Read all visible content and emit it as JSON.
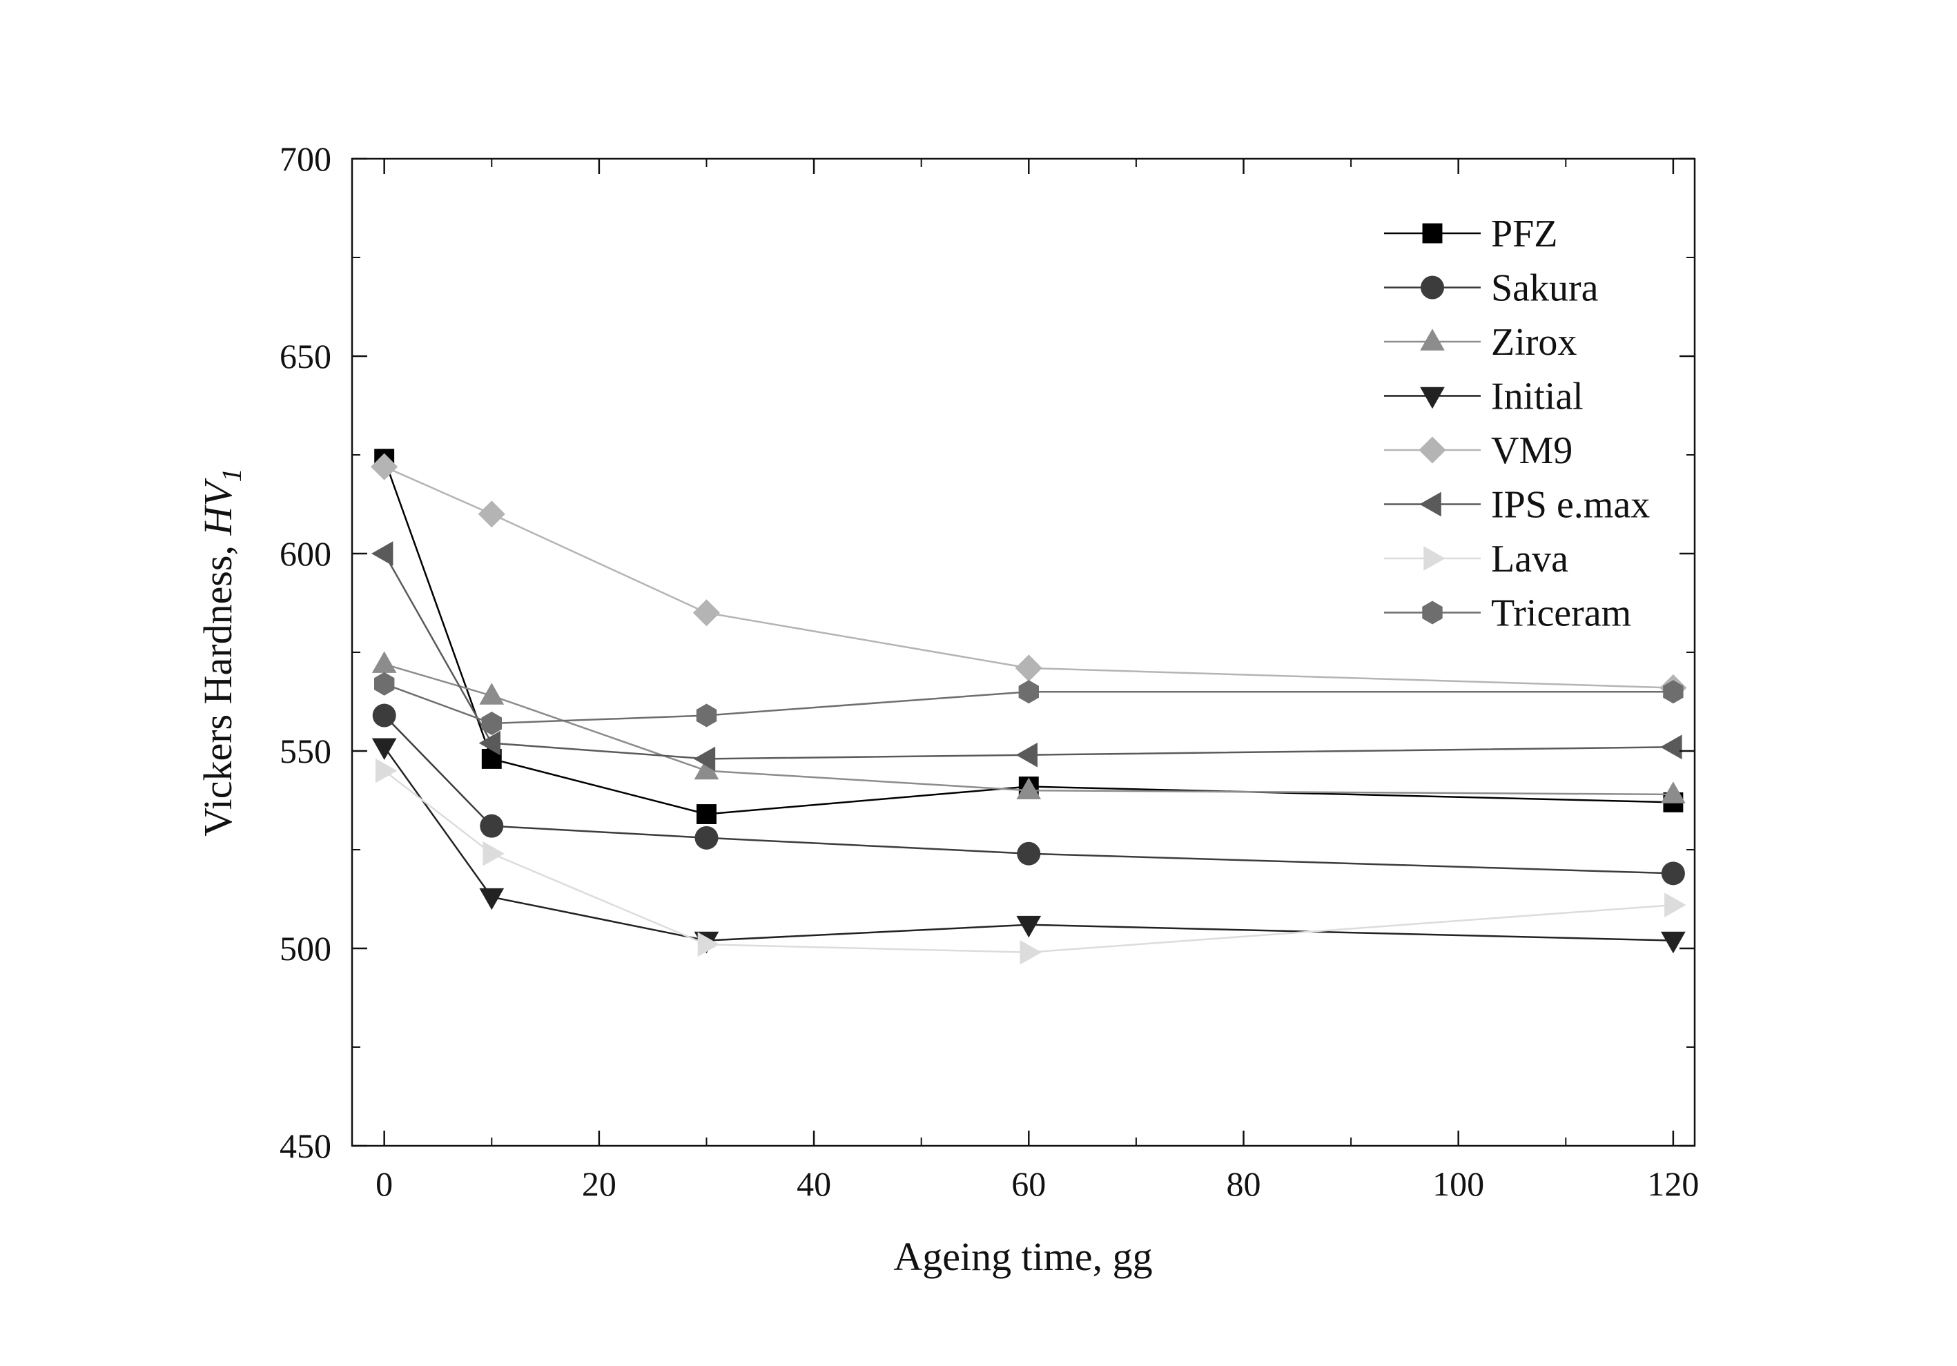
{
  "chart_data": {
    "type": "line",
    "xlabel": "Ageing time, gg",
    "ylabel": {
      "text": "Vickers Hardness, ",
      "symbol": "HV",
      "subscript": "1"
    },
    "xlim": [
      -3,
      122
    ],
    "ylim": [
      450,
      700
    ],
    "xticks": [
      0,
      20,
      40,
      60,
      80,
      100,
      120
    ],
    "yticks": [
      450,
      500,
      550,
      600,
      650,
      700
    ],
    "grid": false,
    "legend_position": "top-right",
    "x": [
      0,
      10,
      30,
      60,
      120
    ],
    "series": [
      {
        "name": "PFZ",
        "marker": "square",
        "color": "#000000",
        "values": [
          624,
          548,
          534,
          541,
          537
        ]
      },
      {
        "name": "Sakura",
        "marker": "circle",
        "color": "#3c3c3c",
        "values": [
          559,
          531,
          528,
          524,
          519
        ]
      },
      {
        "name": "Zirox",
        "marker": "triangle-up",
        "color": "#8c8c8c",
        "values": [
          572,
          564,
          545,
          540,
          539
        ]
      },
      {
        "name": "Initial",
        "marker": "triangle-down",
        "color": "#222222",
        "values": [
          551,
          513,
          502,
          506,
          502
        ]
      },
      {
        "name": "VM9",
        "marker": "diamond",
        "color": "#b4b4b4",
        "values": [
          622,
          610,
          585,
          571,
          566
        ]
      },
      {
        "name": "IPS e.max",
        "marker": "triangle-left",
        "color": "#5a5a5a",
        "values": [
          600,
          552,
          548,
          549,
          551
        ]
      },
      {
        "name": "Lava",
        "marker": "triangle-right",
        "color": "#dcdcdc",
        "values": [
          545,
          524,
          501,
          499,
          511
        ]
      },
      {
        "name": "Triceram",
        "marker": "hexagon",
        "color": "#6e6e6e",
        "values": [
          567,
          557,
          559,
          565,
          565
        ]
      }
    ]
  }
}
